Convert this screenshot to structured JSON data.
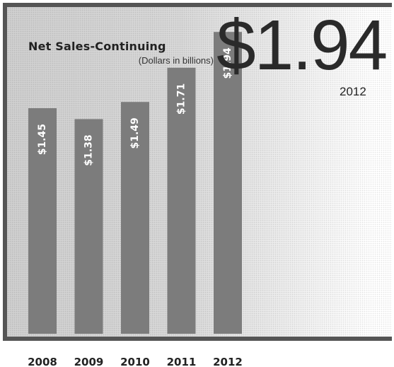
{
  "header": {
    "title": "Net Sales-Continuing",
    "subtitle": "(Dollars in billions)",
    "highlight_value": "$1.94",
    "highlight_year": "2012"
  },
  "colors": {
    "bar": "#7c7c7c",
    "frame": "#555555",
    "bar_label": "#ffffff"
  },
  "chart_data": {
    "type": "bar",
    "title": "Net Sales-Continuing",
    "subtitle": "(Dollars in billions)",
    "categories": [
      "2008",
      "2009",
      "2010",
      "2011",
      "2012"
    ],
    "values": [
      1.45,
      1.38,
      1.49,
      1.71,
      1.94
    ],
    "data_labels": [
      "$1.45",
      "$1.38",
      "$1.49",
      "$1.71",
      "$1.94"
    ],
    "xlabel": "",
    "ylabel": "",
    "ylim": [
      0,
      2.0
    ],
    "grid": false,
    "legend": "none"
  }
}
